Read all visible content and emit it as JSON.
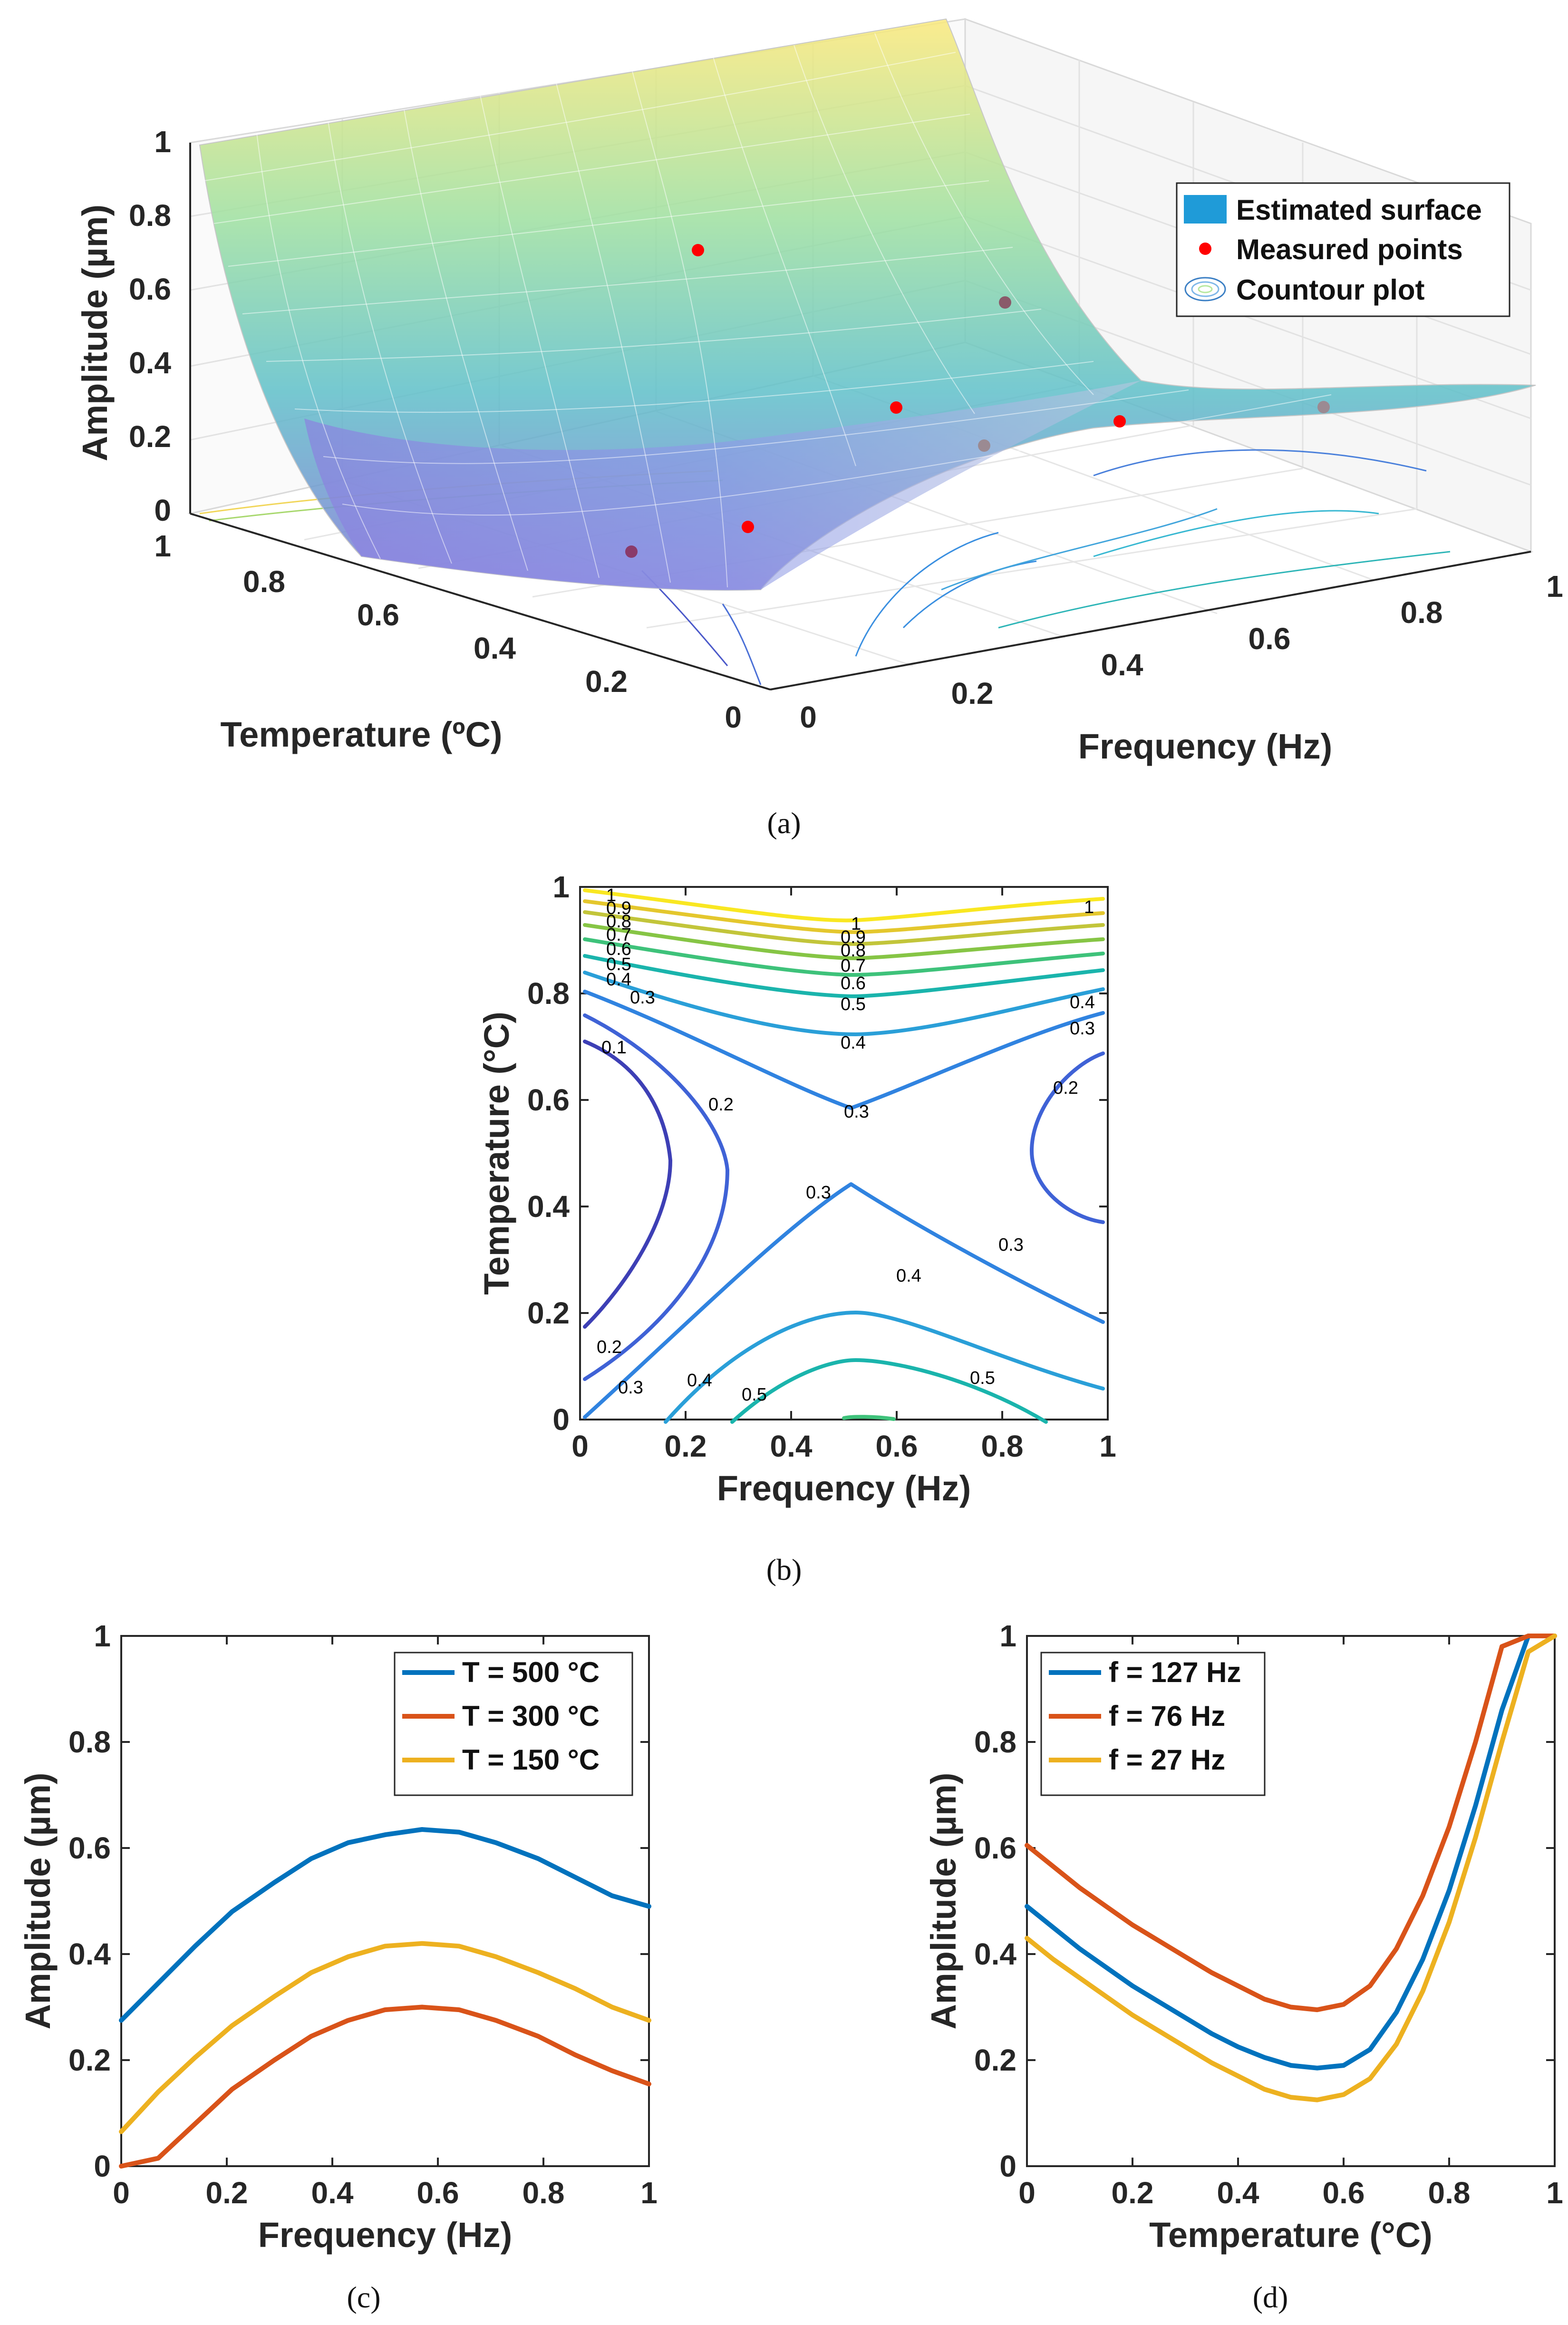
{
  "panels": {
    "a": {
      "caption": "(a)",
      "z_label": "Amplitude (µm)",
      "temperature_label": "Temperature (ºC)",
      "frequency_label": "Frequency (Hz)",
      "z_ticks": [
        "0",
        "0.2",
        "0.4",
        "0.6",
        "0.8",
        "1"
      ],
      "temperature_ticks": [
        "1",
        "0.8",
        "0.6",
        "0.4",
        "0.2",
        "0"
      ],
      "frequency_ticks": [
        "0",
        "0.2",
        "0.4",
        "0.6",
        "0.8",
        "1"
      ],
      "legend": [
        "Estimated surface",
        "Measured points",
        "Countour plot"
      ]
    },
    "b": {
      "caption": "(b)"
    },
    "c": {
      "caption": "(c)"
    },
    "d": {
      "caption": "(d)"
    }
  },
  "chart_data": [
    {
      "panel": "a",
      "type": "surface",
      "xlabel": "Frequency (Hz)",
      "ylabel": "Temperature (ºC)",
      "zlabel": "Amplitude (µm)",
      "xlim": [
        0,
        1
      ],
      "ylim": [
        0,
        1
      ],
      "zlim": [
        0,
        1
      ],
      "grid": true,
      "legend_position": "right",
      "series": [
        {
          "name": "Estimated surface",
          "color": "#1f9bd8"
        },
        {
          "name": "Measured points",
          "color": "#ff0000",
          "points": [
            {
              "frequency": 0.2,
              "temperature": 0.9,
              "amplitude": 0.55
            },
            {
              "frequency": 0.6,
              "temperature": 0.9,
              "amplitude": 0.42
            },
            {
              "frequency": 0.2,
              "temperature": 0.3,
              "amplitude": 0.42
            },
            {
              "frequency": 0.5,
              "temperature": 0.5,
              "amplitude": 0.3
            },
            {
              "frequency": 0.9,
              "temperature": 0.4,
              "amplitude": 0.29
            },
            {
              "frequency": 0.9,
              "temperature": 0.8,
              "amplitude": 0.28
            },
            {
              "frequency": 0.6,
              "temperature": 0.3,
              "amplitude": 0.4
            },
            {
              "frequency": 0.1,
              "temperature": 0.6,
              "amplitude": 0.1
            }
          ]
        },
        {
          "name": "Countour plot",
          "color": "#3b7fc4"
        }
      ]
    },
    {
      "panel": "b",
      "type": "contour",
      "xlabel": "Frequency (Hz)",
      "ylabel": "Temperature (°C)",
      "xlim": [
        0,
        1
      ],
      "ylim": [
        0,
        1
      ],
      "xticks": [
        "0",
        "0.2",
        "0.4",
        "0.6",
        "0.8",
        "1"
      ],
      "yticks": [
        "0",
        "0.2",
        "0.4",
        "0.6",
        "0.8",
        "1"
      ],
      "levels": [
        0.1,
        0.2,
        0.3,
        0.4,
        0.5,
        0.6,
        0.7,
        0.8,
        0.9,
        1.0
      ],
      "level_labels": [
        "1",
        "0.9",
        "0.8",
        "0.7",
        "0.6",
        "0.5",
        "0.4",
        "0.3",
        "0.2",
        "0.1"
      ]
    },
    {
      "panel": "c",
      "type": "line",
      "xlabel": "Frequency (Hz)",
      "ylabel": "Amplitude (µm)",
      "xlim": [
        0,
        1
      ],
      "ylim": [
        0,
        1
      ],
      "xticks": [
        "0",
        "0.2",
        "0.4",
        "0.6",
        "0.8",
        "1"
      ],
      "yticks": [
        "0",
        "0.2",
        "0.4",
        "0.6",
        "0.8",
        "1"
      ],
      "legend_position": "top-right",
      "x": [
        0,
        0.07,
        0.14,
        0.21,
        0.29,
        0.36,
        0.43,
        0.5,
        0.57,
        0.64,
        0.71,
        0.79,
        0.86,
        0.93,
        1.0
      ],
      "series": [
        {
          "name": "T = 500 °C",
          "color": "#0072BD",
          "values": [
            0.275,
            0.345,
            0.415,
            0.48,
            0.535,
            0.58,
            0.61,
            0.625,
            0.635,
            0.63,
            0.61,
            0.58,
            0.545,
            0.51,
            0.49
          ]
        },
        {
          "name": "T = 300 °C",
          "color": "#D95319",
          "values": [
            0.0,
            0.015,
            0.08,
            0.145,
            0.2,
            0.245,
            0.275,
            0.295,
            0.3,
            0.295,
            0.275,
            0.245,
            0.21,
            0.18,
            0.155
          ]
        },
        {
          "name": "T = 150 °C",
          "color": "#EDB120",
          "values": [
            0.065,
            0.14,
            0.205,
            0.265,
            0.32,
            0.365,
            0.395,
            0.415,
            0.42,
            0.415,
            0.395,
            0.365,
            0.335,
            0.3,
            0.275
          ]
        }
      ]
    },
    {
      "panel": "d",
      "type": "line",
      "xlabel": "Temperature (°C)",
      "ylabel": "Amplitude (µm)",
      "xlim": [
        0,
        1
      ],
      "ylim": [
        0,
        1
      ],
      "xticks": [
        "0",
        "0.2",
        "0.4",
        "0.6",
        "0.8",
        "1"
      ],
      "yticks": [
        "0",
        "0.2",
        "0.4",
        "0.6",
        "0.8",
        "1"
      ],
      "legend_position": "top-left",
      "x": [
        0,
        0.05,
        0.1,
        0.15,
        0.2,
        0.25,
        0.3,
        0.35,
        0.4,
        0.45,
        0.5,
        0.55,
        0.6,
        0.65,
        0.7,
        0.75,
        0.8,
        0.85,
        0.9,
        0.95,
        1.0
      ],
      "series": [
        {
          "name": "f = 127 Hz",
          "color": "#0072BD",
          "values": [
            0.49,
            0.45,
            0.41,
            0.375,
            0.34,
            0.31,
            0.28,
            0.25,
            0.225,
            0.205,
            0.19,
            0.185,
            0.19,
            0.22,
            0.29,
            0.39,
            0.52,
            0.68,
            0.86,
            1.0,
            1.0
          ]
        },
        {
          "name": "f = 76 Hz",
          "color": "#D95319",
          "values": [
            0.605,
            0.565,
            0.525,
            0.49,
            0.455,
            0.425,
            0.395,
            0.365,
            0.34,
            0.315,
            0.3,
            0.295,
            0.305,
            0.34,
            0.41,
            0.51,
            0.64,
            0.8,
            0.98,
            1.0,
            1.0
          ]
        },
        {
          "name": "f = 27 Hz",
          "color": "#EDB120",
          "values": [
            0.43,
            0.39,
            0.355,
            0.32,
            0.285,
            0.255,
            0.225,
            0.195,
            0.17,
            0.145,
            0.13,
            0.125,
            0.135,
            0.165,
            0.23,
            0.33,
            0.46,
            0.62,
            0.8,
            0.97,
            1.0
          ]
        }
      ]
    }
  ]
}
